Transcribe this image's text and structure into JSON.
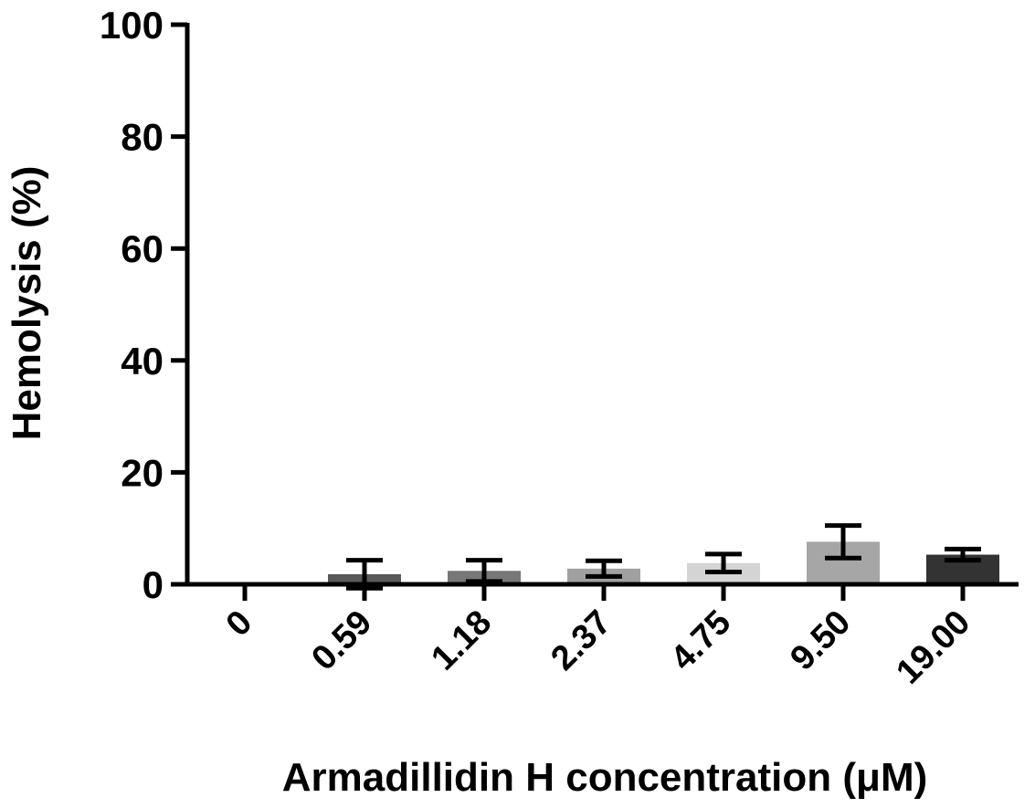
{
  "chart_data": {
    "type": "bar",
    "xlabel": "Armadillidin H concentration (μM)",
    "ylabel": "Hemolysis (%)",
    "categories": [
      "0",
      "0.59",
      "1.18",
      "2.37",
      "4.75",
      "9.50",
      "19.00"
    ],
    "values": [
      0,
      1.8,
      2.4,
      2.8,
      3.8,
      7.6,
      5.3
    ],
    "errors": [
      0,
      2.5,
      1.9,
      1.4,
      1.6,
      2.9,
      1.0
    ],
    "bar_colors": [
      "#000000",
      "#595959",
      "#777777",
      "#a0a0a0",
      "#d4d4d4",
      "#a6a6a6",
      "#333333"
    ],
    "ylim": [
      0,
      100
    ],
    "yticks": [
      0,
      20,
      40,
      60,
      80,
      100
    ],
    "grid": false
  }
}
